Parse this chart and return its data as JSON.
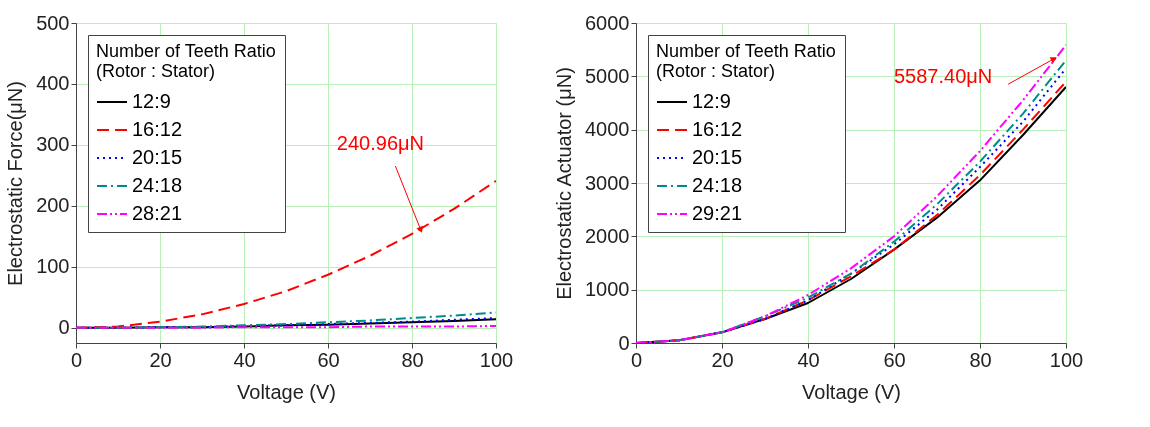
{
  "chart_data": [
    {
      "type": "line",
      "xlabel": "Voltage (V)",
      "ylabel": "Electrostatic Force(μN)",
      "legend_title": "Number of Teeth Ratio\n(Rotor : Stator)",
      "legend": "top left",
      "grid": true,
      "x": [
        0,
        10,
        20,
        30,
        40,
        50,
        60,
        70,
        80,
        90,
        100
      ],
      "xlim": [
        0,
        100
      ],
      "xticks": [
        0,
        20,
        40,
        60,
        80,
        100
      ],
      "ylim": [
        -25,
        500
      ],
      "yticks": [
        0,
        100,
        200,
        300,
        400,
        500
      ],
      "series": [
        {
          "name": "12:9",
          "color": "#000000",
          "line_style": "solid",
          "values": [
            0,
            0,
            1,
            1,
            2,
            4,
            5,
            7,
            9,
            11,
            14
          ]
        },
        {
          "name": "16:12",
          "color": "#ff0000",
          "line_style": "dashed",
          "values": [
            0,
            2,
            10,
            22,
            39,
            60,
            87,
            118,
            154,
            195,
            240.96
          ]
        },
        {
          "name": "20:15",
          "color": "#0000ff",
          "line_style": "dotted",
          "values": [
            0,
            0,
            1,
            1,
            3,
            4,
            6,
            8,
            10,
            13,
            16
          ]
        },
        {
          "name": "24:18",
          "color": "#008b8b",
          "line_style": "dashdot",
          "values": [
            0,
            0,
            1,
            2,
            4,
            6,
            9,
            12,
            16,
            20,
            25
          ]
        },
        {
          "name": "28:21",
          "color": "#ff00ff",
          "line_style": "dashdotdot",
          "values": [
            0,
            0,
            0,
            0,
            1,
            1,
            1,
            2,
            2,
            2,
            3
          ]
        }
      ],
      "annotations": [
        {
          "text": "240.96μN",
          "x": 82,
          "y": 162
        }
      ]
    },
    {
      "type": "line",
      "xlabel": "Voltage (V)",
      "ylabel": "Electrostatic Actuator (μN)",
      "legend_title": "Number of Teeth Ratio\n(Rotor : Stator)",
      "legend": "top left",
      "grid": true,
      "x": [
        0,
        10,
        20,
        30,
        40,
        50,
        60,
        70,
        80,
        90,
        100
      ],
      "xlim": [
        0,
        100
      ],
      "xticks": [
        0,
        20,
        40,
        60,
        80,
        100
      ],
      "ylim": [
        0,
        6000
      ],
      "yticks": [
        0,
        1000,
        2000,
        3000,
        4000,
        5000,
        6000
      ],
      "series": [
        {
          "name": "12:9",
          "color": "#000000",
          "line_style": "solid",
          "values": [
            0,
            50,
            200,
            450,
            750,
            1200,
            1750,
            2350,
            3050,
            3900,
            4800
          ]
        },
        {
          "name": "16:12",
          "color": "#ff0000",
          "line_style": "dashed",
          "values": [
            0,
            50,
            200,
            450,
            800,
            1250,
            1750,
            2400,
            3150,
            4000,
            4900
          ]
        },
        {
          "name": "20:15",
          "color": "#0000ff",
          "line_style": "dotted",
          "values": [
            0,
            50,
            200,
            450,
            800,
            1300,
            1850,
            2500,
            3300,
            4150,
            5150
          ]
        },
        {
          "name": "24:18",
          "color": "#008b8b",
          "line_style": "dashdot",
          "values": [
            0,
            50,
            200,
            500,
            850,
            1300,
            1900,
            2600,
            3400,
            4300,
            5300
          ]
        },
        {
          "name": "29:21",
          "color": "#ff00ff",
          "line_style": "dashdotdot",
          "values": [
            0,
            50,
            200,
            500,
            900,
            1400,
            2000,
            2750,
            3600,
            4550,
            5587.4
          ]
        }
      ],
      "annotations": [
        {
          "text": "5587.40μN",
          "x": 97,
          "y": 5320
        }
      ]
    }
  ]
}
